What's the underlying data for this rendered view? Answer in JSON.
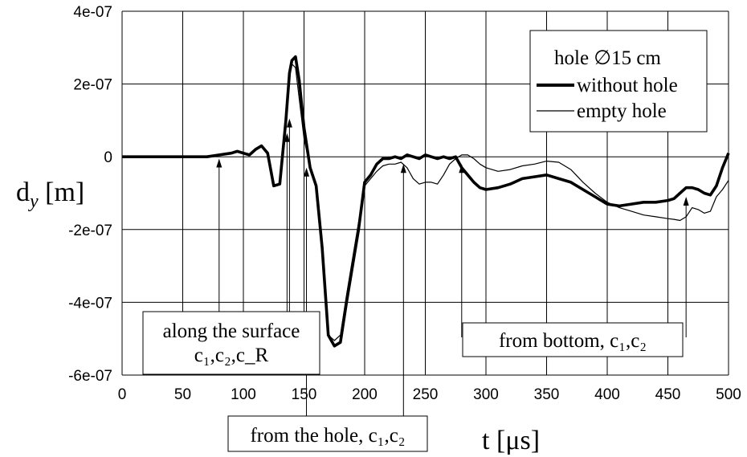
{
  "chart_data": {
    "type": "line",
    "xlabel": "t [μs]",
    "ylabel": "d_y [m]",
    "xlim": [
      0,
      500
    ],
    "ylim": [
      -6e-07,
      4e-07
    ],
    "grid": true,
    "xticks": [
      0,
      50,
      100,
      150,
      200,
      250,
      300,
      350,
      400,
      450,
      500
    ],
    "xtick_labels": [
      "0",
      "50",
      "100",
      "150",
      "200",
      "250",
      "300",
      "350",
      "400",
      "450",
      "500"
    ],
    "yticks": [
      4e-07,
      2e-07,
      0,
      -2e-07,
      -4e-07,
      -6e-07
    ],
    "ytick_labels": [
      "4e-07",
      "2e-07",
      "0",
      "-2e-07",
      "-4e-07",
      "-6e-07"
    ],
    "legend": {
      "placement": "top-right",
      "title": "hole ∅15 cm",
      "entries": [
        "without hole",
        "empty hole"
      ]
    },
    "series": [
      {
        "name": "without hole",
        "color": "#000000",
        "width": "bold",
        "x": [
          0,
          70,
          80,
          90,
          95,
          100,
          105,
          110,
          115,
          120,
          125,
          130,
          135,
          138,
          140,
          143,
          146,
          150,
          155,
          160,
          165,
          170,
          175,
          180,
          185,
          190,
          195,
          200,
          205,
          210,
          215,
          220,
          225,
          230,
          235,
          240,
          245,
          250,
          255,
          260,
          265,
          270,
          275,
          280,
          285,
          290,
          295,
          300,
          310,
          320,
          330,
          340,
          350,
          360,
          370,
          380,
          390,
          400,
          410,
          420,
          430,
          440,
          450,
          455,
          460,
          465,
          470,
          475,
          480,
          485,
          490,
          495,
          500
        ],
        "y": [
          0,
          0,
          5e-09,
          1e-08,
          1.5e-08,
          1e-08,
          5e-09,
          2e-08,
          3e-08,
          1e-08,
          -8e-08,
          -7.5e-08,
          1e-07,
          2.3e-07,
          2.65e-07,
          2.75e-07,
          2.1e-07,
          8e-08,
          -3e-08,
          -8e-08,
          -2.5e-07,
          -4.9e-07,
          -5.2e-07,
          -5.1e-07,
          -4e-07,
          -3e-07,
          -2e-07,
          -7e-08,
          -5e-08,
          -2e-08,
          -5e-09,
          -5e-09,
          0,
          -5e-09,
          5e-09,
          0,
          -5e-09,
          5e-09,
          0,
          -5e-09,
          0,
          -5e-09,
          0,
          -3e-08,
          -5e-08,
          -7e-08,
          -8.5e-08,
          -9e-08,
          -8.5e-08,
          -7.5e-08,
          -6e-08,
          -5.5e-08,
          -5e-08,
          -6e-08,
          -7e-08,
          -9e-08,
          -1.1e-07,
          -1.3e-07,
          -1.35e-07,
          -1.3e-07,
          -1.25e-07,
          -1.25e-07,
          -1.2e-07,
          -1.15e-07,
          -1e-07,
          -8.5e-08,
          -8.5e-08,
          -9e-08,
          -1e-07,
          -1.05e-07,
          -8e-08,
          -3e-08,
          1e-08
        ]
      },
      {
        "name": "empty hole",
        "color": "#000000",
        "width": "thin",
        "x": [
          0,
          70,
          80,
          90,
          95,
          100,
          105,
          110,
          115,
          120,
          125,
          130,
          135,
          138,
          140,
          143,
          146,
          150,
          155,
          160,
          165,
          170,
          175,
          180,
          185,
          190,
          195,
          200,
          205,
          210,
          215,
          220,
          225,
          230,
          235,
          240,
          245,
          250,
          255,
          260,
          265,
          270,
          275,
          280,
          285,
          290,
          295,
          300,
          310,
          320,
          330,
          340,
          350,
          360,
          370,
          380,
          390,
          400,
          410,
          420,
          430,
          440,
          450,
          455,
          460,
          465,
          470,
          475,
          480,
          485,
          490,
          495,
          500
        ],
        "y": [
          0,
          0,
          5e-09,
          1e-08,
          1.5e-08,
          1e-08,
          5e-09,
          2e-08,
          3e-08,
          1e-08,
          -8e-08,
          -7.5e-08,
          9e-08,
          2.2e-07,
          2.55e-07,
          2.45e-07,
          1.6e-07,
          5e-08,
          -3e-08,
          -8e-08,
          -2.5e-07,
          -4.9e-07,
          -5.05e-07,
          -4.9e-07,
          -3.8e-07,
          -2.8e-07,
          -1.8e-07,
          -8e-08,
          -6e-08,
          -4e-08,
          -2.5e-08,
          -2e-08,
          -2e-08,
          -1.5e-08,
          -3e-08,
          -6e-08,
          -7.5e-08,
          -7e-08,
          -7e-08,
          -7.5e-08,
          -5e-08,
          -2e-08,
          -5e-09,
          5e-09,
          5e-09,
          -5e-09,
          -2e-08,
          -3e-08,
          -4e-08,
          -3.5e-08,
          -2.5e-08,
          -2e-08,
          -1.2e-08,
          -1.5e-08,
          -3.5e-08,
          -7e-08,
          -1e-07,
          -1.25e-07,
          -1.4e-07,
          -1.5e-07,
          -1.6e-07,
          -1.65e-07,
          -1.7e-07,
          -1.72e-07,
          -1.75e-07,
          -1.65e-07,
          -1.4e-07,
          -1.45e-07,
          -1.55e-07,
          -1.5e-07,
          -1.1e-07,
          -9e-08,
          -6.5e-08
        ]
      }
    ],
    "annotations": [
      {
        "id": "along-surface",
        "lines": [
          "along the surface",
          "c₁,c₂,c_R"
        ],
        "arrows_at": [
          80,
          136,
          138
        ]
      },
      {
        "id": "from-hole",
        "lines": [
          "from the hole, c₁,c₂"
        ],
        "arrows_at": [
          152,
          232
        ]
      },
      {
        "id": "from-bottom",
        "lines": [
          "from bottom, c₁,c₂"
        ],
        "arrows_at": [
          280,
          465
        ]
      }
    ]
  }
}
